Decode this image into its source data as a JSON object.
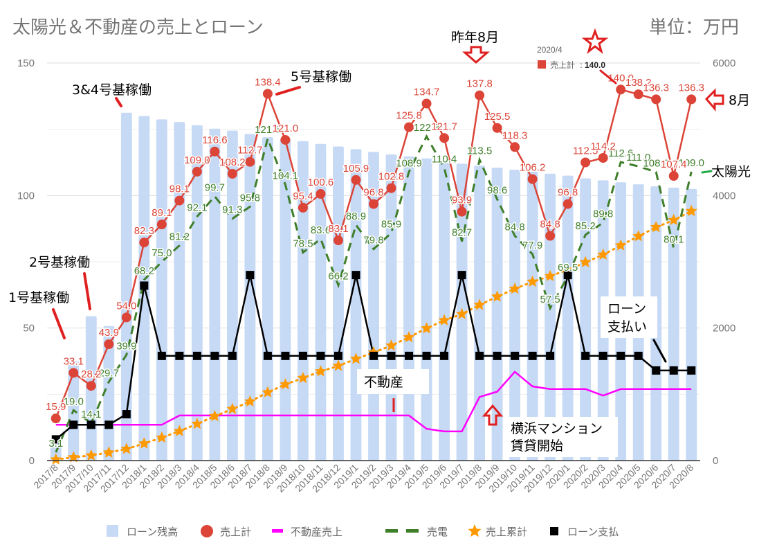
{
  "chart_data": {
    "type": "combo",
    "title": "太陽光＆不動産の売上とローン",
    "unit_label": "単位：万円",
    "categories": [
      "2017/8",
      "2017/9",
      "2017/10",
      "2017/11",
      "2017/12",
      "2018/1",
      "2018/2",
      "2018/3",
      "2018/4",
      "2018/5",
      "2018/6",
      "2018/7",
      "2018/8",
      "2018/9",
      "2018/10",
      "2018/11",
      "2018/12",
      "2019/1",
      "2019/2",
      "2019/3",
      "2019/4",
      "2019/5",
      "2019/6",
      "2019/7",
      "2019/8",
      "2019/9",
      "2019/10",
      "2019/11",
      "2019/12",
      "2020/1",
      "2020/2",
      "2020/3",
      "2020/4",
      "2020/5",
      "2020/6",
      "2020/7",
      "2020/8"
    ],
    "left_axis": {
      "min": 0,
      "max": 150,
      "ticks": [
        0,
        50,
        100,
        150
      ]
    },
    "right_axis": {
      "min": 0,
      "max": 6000,
      "ticks": [
        0,
        2000,
        4000,
        6000
      ]
    },
    "gridlines": true,
    "legend_position": "bottom",
    "series": [
      {
        "name": "ローン残高",
        "type": "bar",
        "axis": "right",
        "color": "#c6d9f5",
        "values": [
          310,
          1500,
          2180,
          2030,
          5250,
          5200,
          5150,
          5110,
          5060,
          5010,
          4980,
          4930,
          4880,
          4850,
          4820,
          4780,
          4740,
          4700,
          4660,
          4620,
          4590,
          4560,
          4520,
          4480,
          4450,
          4420,
          4390,
          4360,
          4330,
          4300,
          4260,
          4230,
          4200,
          4170,
          4140,
          4120,
          4100
        ]
      },
      {
        "name": "売上計",
        "type": "line",
        "axis": "left",
        "color": "#db4437",
        "marker": "circle",
        "show_labels": true,
        "values": [
          15.9,
          33.1,
          28.2,
          43.9,
          54.0,
          82.3,
          89.1,
          98.1,
          109.0,
          116.6,
          108.2,
          112.7,
          138.4,
          121.0,
          95.4,
          100.6,
          83.1,
          105.9,
          96.8,
          102.8,
          125.8,
          134.7,
          121.7,
          93.9,
          137.8,
          125.5,
          118.3,
          106.2,
          84.8,
          96.8,
          112.5,
          114.2,
          140.0,
          138.2,
          136.3,
          107.4,
          136.3
        ]
      },
      {
        "name": "不動産売上",
        "type": "line",
        "axis": "left",
        "color": "#ff00ff",
        "values": [
          13.5,
          13.5,
          13.5,
          13.5,
          13.5,
          13.5,
          13.5,
          17.0,
          17.0,
          17.0,
          17.0,
          17.0,
          17.0,
          17.0,
          17.0,
          17.0,
          17.0,
          17.0,
          17.0,
          17.0,
          17.0,
          12.0,
          11.0,
          11.0,
          24.0,
          26.0,
          33.5,
          28.0,
          27.0,
          27.0,
          27.0,
          24.5,
          27.0,
          27.0,
          27.0,
          27.0,
          27.0
        ]
      },
      {
        "name": "売電",
        "type": "line",
        "axis": "left",
        "color": "#3f7f2a",
        "dash": true,
        "show_labels": true,
        "values": [
          3.1,
          19.0,
          14.1,
          29.7,
          39.9,
          68.2,
          75.0,
          81.2,
          92.1,
          99.7,
          91.3,
          95.8,
          121.5,
          104.1,
          78.5,
          83.6,
          66.2,
          88.9,
          79.8,
          85.9,
          108.9,
          122.3,
          110.4,
          82.7,
          113.5,
          98.6,
          84.8,
          77.9,
          57.5,
          69.5,
          85.2,
          89.8,
          112.6,
          111.0,
          108.9,
          80.1,
          109.0
        ]
      },
      {
        "name": "売上累計",
        "type": "line",
        "axis": "right",
        "color": "#ff9900",
        "marker": "star",
        "dotted": true,
        "values": [
          16,
          49,
          77,
          121,
          175,
          257,
          346,
          444,
          553,
          670,
          778,
          891,
          1029,
          1150,
          1246,
          1346,
          1429,
          1535,
          1632,
          1735,
          1861,
          1995,
          2117,
          2211,
          2349,
          2474,
          2593,
          2699,
          2784,
          2880,
          2993,
          3107,
          3247,
          3385,
          3522,
          3629,
          3765
        ]
      },
      {
        "name": "ローン支払",
        "type": "line",
        "axis": "left",
        "color": "#000000",
        "marker": "square",
        "values": [
          8.0,
          13.5,
          13.5,
          13.5,
          17.5,
          66.0,
          39.5,
          39.5,
          39.5,
          39.5,
          39.5,
          70.0,
          39.5,
          39.5,
          39.5,
          39.5,
          39.5,
          70.0,
          39.5,
          39.5,
          39.5,
          39.5,
          39.5,
          70.0,
          39.5,
          39.5,
          39.5,
          39.5,
          39.5,
          70.0,
          39.5,
          39.5,
          39.5,
          39.5,
          34.0,
          34.0,
          34.0
        ]
      }
    ],
    "tooltip": {
      "date": "2020/4",
      "label": "売上計",
      "value": "140.0"
    },
    "annotations": [
      {
        "id": "unit1",
        "text": "1号基稼働"
      },
      {
        "id": "unit2",
        "text": "2号基稼働"
      },
      {
        "id": "unit34",
        "text": "3&4号基稼働"
      },
      {
        "id": "unit5",
        "text": "5号基稼働"
      },
      {
        "id": "last-aug",
        "text": "昨年8月"
      },
      {
        "id": "aug",
        "text": "8月"
      },
      {
        "id": "solar",
        "text": "太陽光"
      },
      {
        "id": "realestate",
        "text": "不動産"
      },
      {
        "id": "yokohama1",
        "text": "横浜マンション"
      },
      {
        "id": "yokohama2",
        "text": "賃貸開始"
      },
      {
        "id": "loan1",
        "text": "ローン"
      },
      {
        "id": "loan2",
        "text": "支払い"
      }
    ]
  }
}
